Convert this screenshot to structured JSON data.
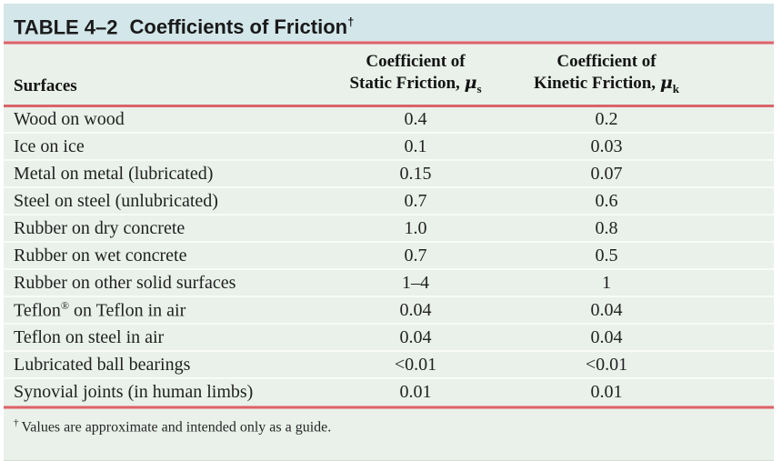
{
  "title_bar": {
    "table_number": "TABLE 4–2",
    "table_title": "Coefficients of Friction",
    "dagger": "†"
  },
  "header": {
    "surfaces": "Surfaces",
    "static_line1": "Coefficient of",
    "static_line2": "Static Friction, ",
    "kinetic_line1": "Coefficient of",
    "kinetic_line2": "Kinetic Friction, ",
    "mu": "μ",
    "static_sub": "s",
    "kinetic_sub": "k"
  },
  "rows": [
    {
      "surface": "Wood on wood",
      "static": "0.4",
      "kinetic": "0.2"
    },
    {
      "surface": "Ice on ice",
      "static": "0.1",
      "kinetic": "0.03"
    },
    {
      "surface": "Metal on metal (lubricated)",
      "static": "0.15",
      "kinetic": "0.07"
    },
    {
      "surface": "Steel on steel (unlubricated)",
      "static": "0.7",
      "kinetic": "0.6"
    },
    {
      "surface": "Rubber on dry concrete",
      "static": "1.0",
      "kinetic": "0.8"
    },
    {
      "surface": "Rubber on wet concrete",
      "static": "0.7",
      "kinetic": "0.5"
    },
    {
      "surface": "Rubber on other solid surfaces",
      "static": "1–4",
      "kinetic": "1"
    },
    {
      "surface": "Teflon",
      "surface_sup": "®",
      "surface_rest": " on Teflon in air",
      "static": "0.04",
      "kinetic": "0.04"
    },
    {
      "surface": "Teflon on steel in air",
      "static": "0.04",
      "kinetic": "0.04"
    },
    {
      "surface": "Lubricated ball bearings",
      "static": "<0.01",
      "kinetic": "<0.01"
    },
    {
      "surface": "Synovial joints (in human limbs)",
      "static": "0.01",
      "kinetic": "0.01"
    }
  ],
  "footnote": {
    "marker": "†",
    "text": "Values are approximate and intended only as a guide."
  },
  "colors": {
    "title_bg": "#d3e6e9",
    "body_bg": "#e9f1ea",
    "rule_red": "#d9646a",
    "row_separator": "#f8fbf8"
  }
}
